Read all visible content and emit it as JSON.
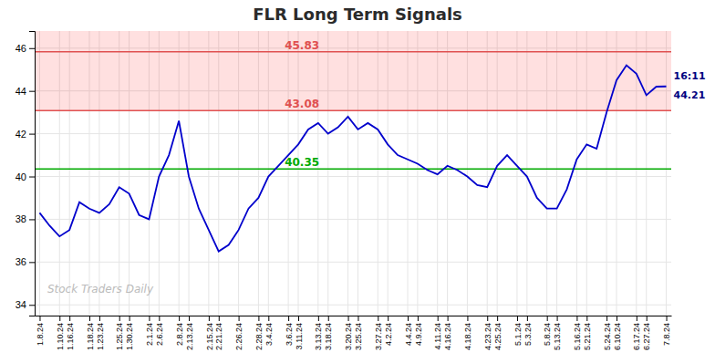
{
  "chart_data": {
    "type": "line",
    "title": "FLR Long Term Signals",
    "categories": [
      "1.8.24",
      null,
      "1.10.24",
      "1.16.24",
      null,
      "1.18.24",
      "1.23.24",
      null,
      "1.25.24",
      "1.30.24",
      null,
      "2.1.24",
      "2.6.24",
      null,
      "2.8.24",
      "2.13.24",
      null,
      "2.15.24",
      "2.21.24",
      null,
      "2.26.24",
      null,
      "2.28.24",
      "3.4.24",
      null,
      "3.6.24",
      "3.11.24",
      null,
      "3.13.24",
      "3.18.24",
      null,
      "3.20.24",
      "3.25.24",
      null,
      "3.27.24",
      "4.2.24",
      null,
      "4.4.24",
      "4.9.24",
      null,
      "4.11.24",
      "4.16.24",
      null,
      "4.18.24",
      null,
      "4.23.24",
      "4.25.24",
      null,
      "5.1.24",
      "5.3.24",
      null,
      "5.8.24",
      "5.13.24",
      null,
      "5.16.24",
      "5.21.24",
      null,
      "5.24.24",
      "6.10.24",
      null,
      "6.17.24",
      "6.27.24",
      null,
      "7.8.24"
    ],
    "values": [
      38.3,
      37.7,
      37.2,
      37.5,
      38.8,
      38.5,
      38.3,
      38.7,
      39.5,
      39.2,
      38.2,
      38.0,
      40.0,
      41.0,
      42.6,
      40.0,
      38.5,
      37.5,
      36.5,
      36.8,
      37.5,
      38.5,
      39.0,
      40.0,
      40.5,
      41.0,
      41.5,
      42.2,
      42.5,
      42.0,
      42.3,
      42.8,
      42.2,
      42.5,
      42.2,
      41.5,
      41.0,
      40.8,
      40.6,
      40.3,
      40.1,
      40.5,
      40.3,
      40.0,
      39.6,
      39.5,
      40.5,
      41.0,
      40.5,
      40.0,
      39.0,
      38.5,
      38.5,
      39.4,
      40.8,
      41.5,
      41.3,
      43.0,
      44.5,
      45.2,
      44.8,
      43.8,
      44.2,
      44.21
    ],
    "color": "#0000cc",
    "ylim": [
      33.5,
      46.8
    ],
    "yticks": [
      34,
      36,
      38,
      40,
      42,
      44,
      46
    ],
    "grid": true,
    "bands": [
      {
        "from": 43.08,
        "to": 45.83,
        "color": "#ff0000"
      },
      {
        "from": 45.83,
        "to": 46.8,
        "color": "#ff0000"
      }
    ],
    "reference_lines": [
      {
        "y": 40.35,
        "color": "#00aa00",
        "label": "40.35"
      },
      {
        "y": 45.83,
        "color": "#e05050",
        "label": "45.83"
      },
      {
        "y": 43.08,
        "color": "#e05050",
        "label": "43.08"
      }
    ],
    "last_annotation": {
      "lines": [
        "16:11",
        "44.21"
      ],
      "color": "#000080"
    },
    "watermark": {
      "text": "Stock Traders Daily",
      "color": "#bbbbbb"
    }
  }
}
